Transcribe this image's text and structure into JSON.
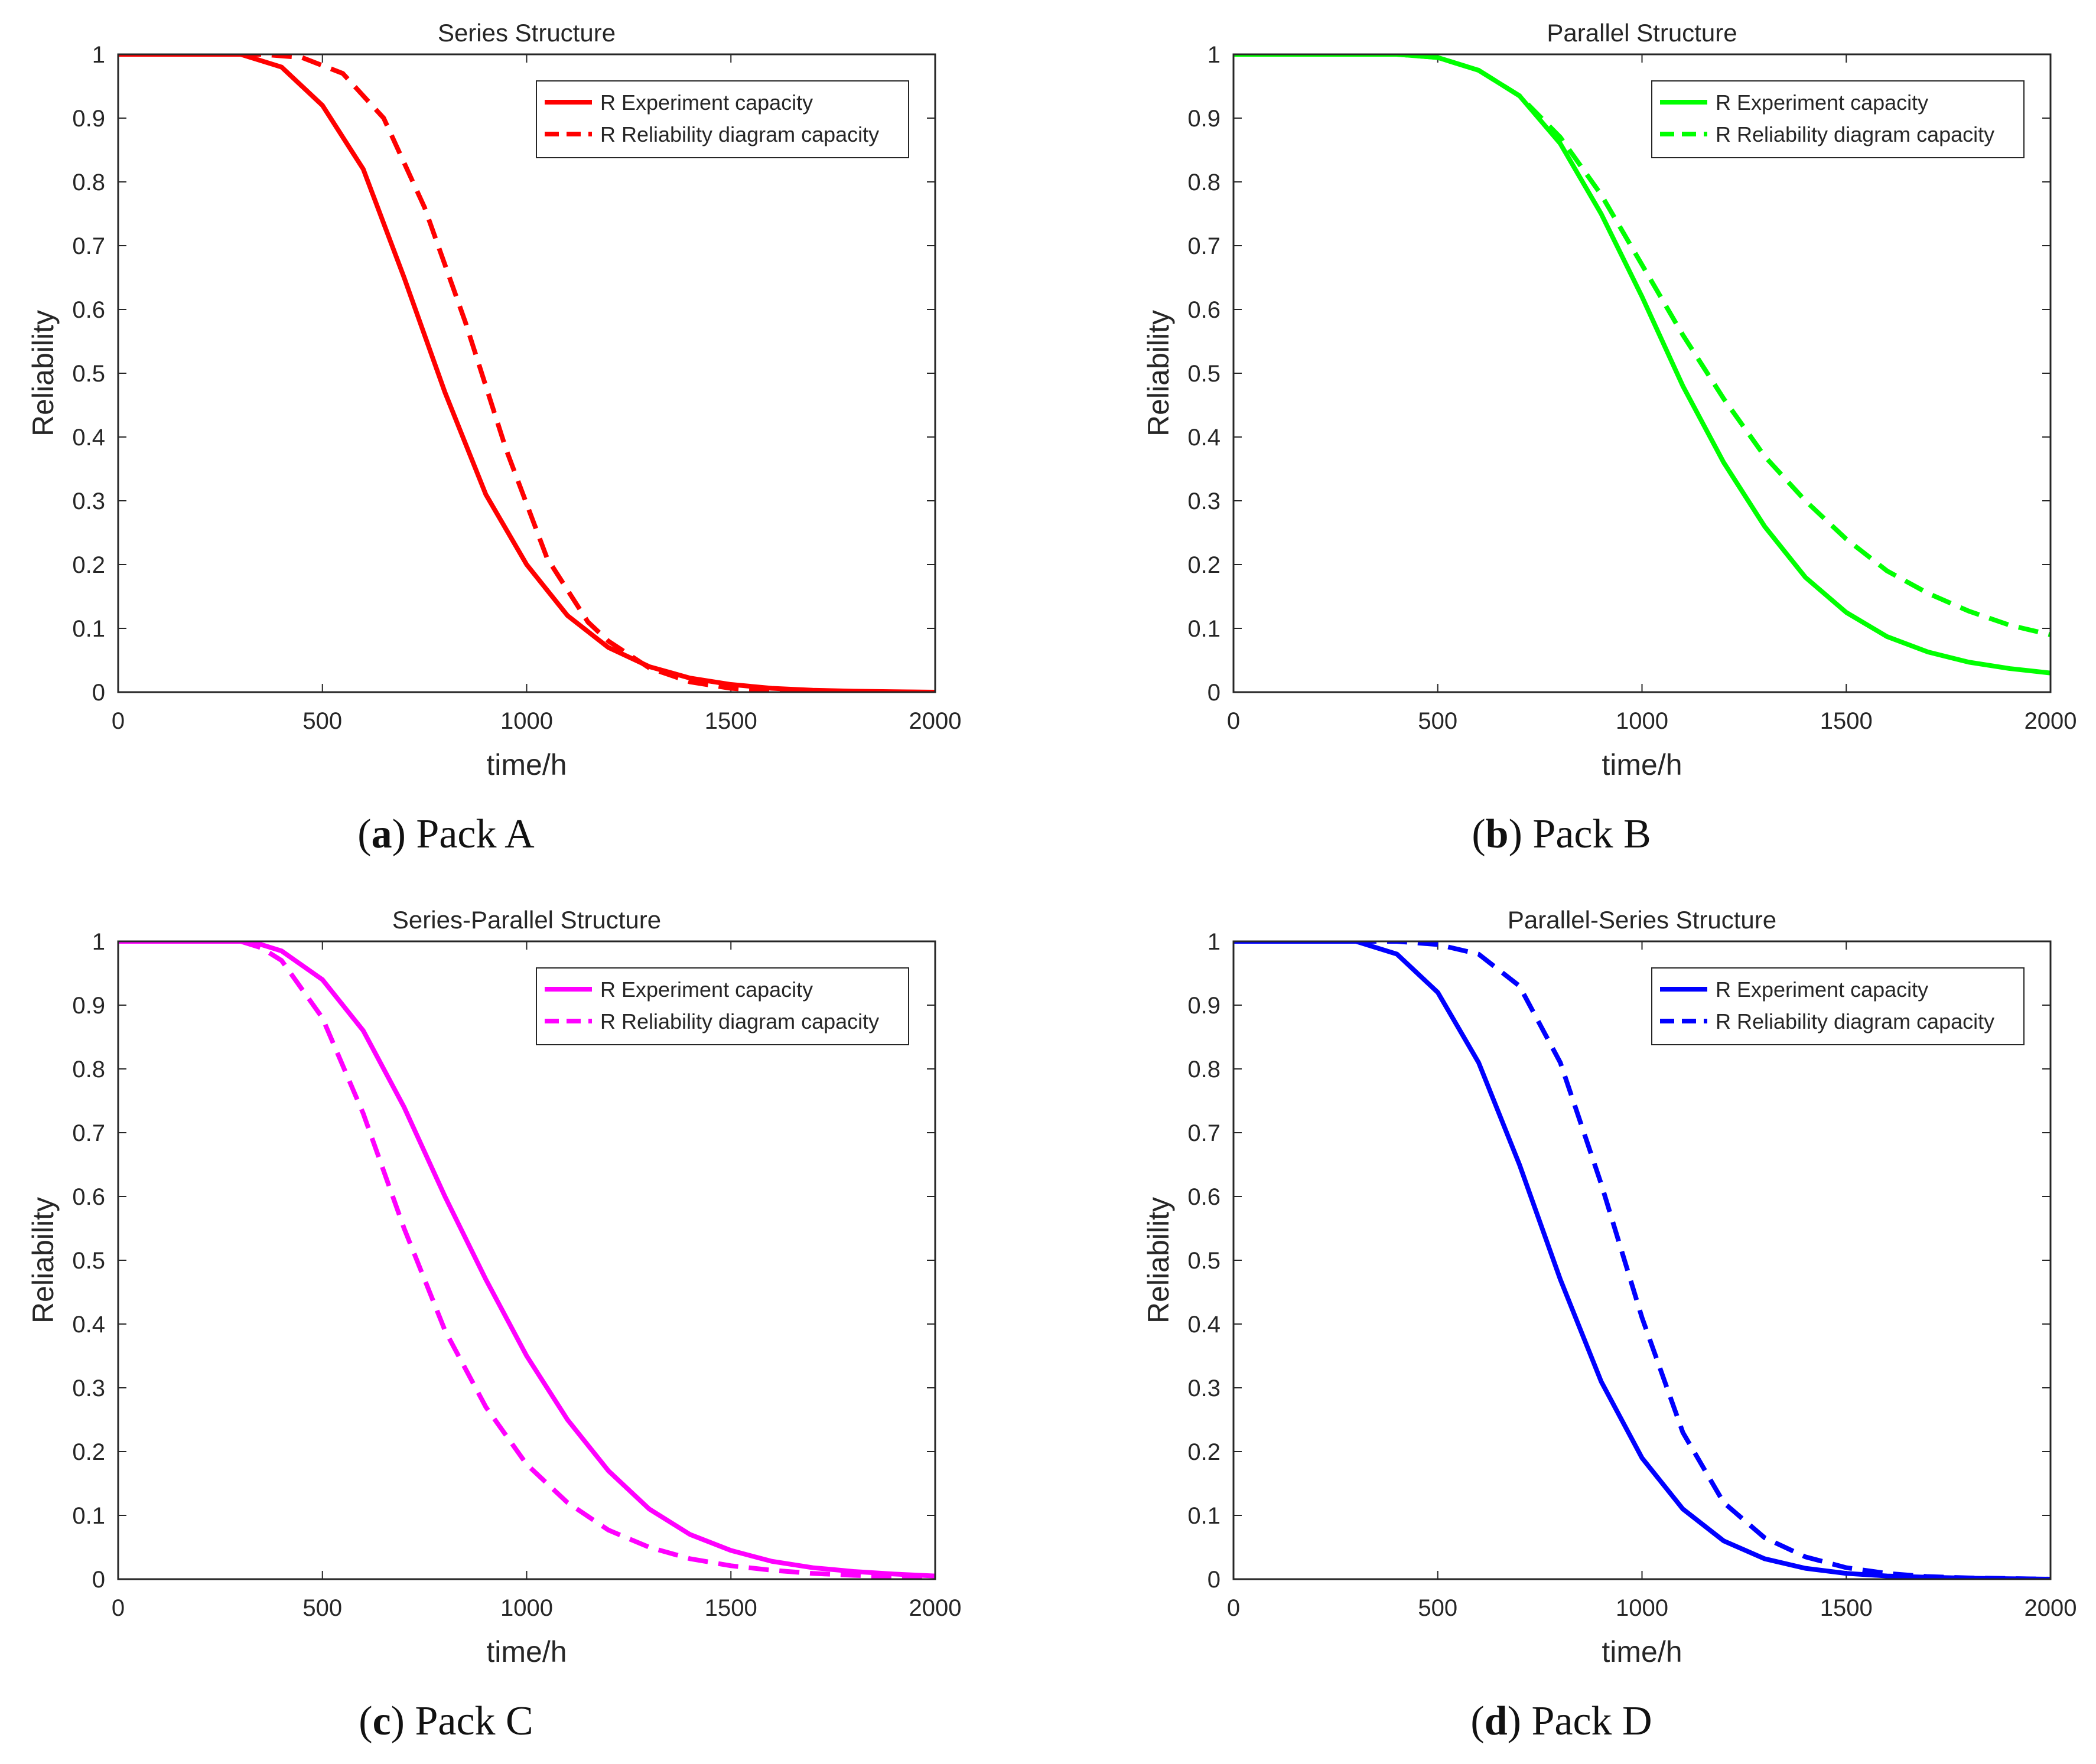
{
  "figure": {
    "panels": [
      {
        "letter": "a",
        "caption": "Pack A"
      },
      {
        "letter": "b",
        "caption": "Pack B"
      },
      {
        "letter": "c",
        "caption": "Pack C"
      },
      {
        "letter": "d",
        "caption": "Pack D"
      }
    ]
  },
  "chart_data": [
    {
      "type": "line",
      "title": "Series Structure",
      "xlabel": "time/h",
      "ylabel": "Reliability",
      "xlim": [
        0,
        2000
      ],
      "ylim": [
        0,
        1
      ],
      "xticks": [
        0,
        500,
        1000,
        1500,
        2000
      ],
      "yticks": [
        0,
        0.1,
        0.2,
        0.3,
        0.4,
        0.5,
        0.6,
        0.7,
        0.8,
        0.9,
        1
      ],
      "legend_position": "top-right",
      "color": "#ff0000",
      "series": [
        {
          "name": "R Experiment capacity",
          "style": "solid",
          "x": [
            0,
            300,
            400,
            500,
            600,
            700,
            800,
            900,
            1000,
            1100,
            1200,
            1300,
            1400,
            1500,
            1600,
            1700,
            1800,
            1900,
            2000
          ],
          "y": [
            1.0,
            1.0,
            0.98,
            0.92,
            0.82,
            0.65,
            0.47,
            0.31,
            0.2,
            0.12,
            0.07,
            0.04,
            0.022,
            0.012,
            0.006,
            0.003,
            0.0015,
            0.0007,
            0.0
          ]
        },
        {
          "name": "R Reliability diagram capacity",
          "style": "dashed",
          "x": [
            0,
            350,
            450,
            550,
            650,
            750,
            850,
            950,
            1050,
            1150,
            1200,
            1300,
            1400,
            1500,
            1600,
            1700,
            1800,
            2000
          ],
          "y": [
            1.0,
            1.0,
            0.995,
            0.97,
            0.9,
            0.76,
            0.58,
            0.38,
            0.21,
            0.11,
            0.08,
            0.038,
            0.016,
            0.006,
            0.002,
            0.0008,
            0.0003,
            0.0
          ]
        }
      ]
    },
    {
      "type": "line",
      "title": "Parallel Structure",
      "xlabel": "time/h",
      "ylabel": "Reliability",
      "xlim": [
        0,
        2000
      ],
      "ylim": [
        0,
        1
      ],
      "xticks": [
        0,
        500,
        1000,
        1500,
        2000
      ],
      "yticks": [
        0,
        0.1,
        0.2,
        0.3,
        0.4,
        0.5,
        0.6,
        0.7,
        0.8,
        0.9,
        1
      ],
      "legend_position": "top-right",
      "color": "#00ff00",
      "series": [
        {
          "name": "R Experiment capacity",
          "style": "solid",
          "x": [
            0,
            400,
            500,
            600,
            700,
            800,
            900,
            1000,
            1100,
            1200,
            1300,
            1400,
            1500,
            1600,
            1700,
            1800,
            1900,
            2000
          ],
          "y": [
            1.0,
            1.0,
            0.995,
            0.975,
            0.935,
            0.86,
            0.75,
            0.62,
            0.48,
            0.36,
            0.26,
            0.18,
            0.125,
            0.087,
            0.063,
            0.047,
            0.037,
            0.03
          ]
        },
        {
          "name": "R Reliability diagram capacity",
          "style": "dashed",
          "x": [
            0,
            400,
            500,
            600,
            700,
            800,
            900,
            1000,
            1100,
            1200,
            1300,
            1400,
            1500,
            1600,
            1700,
            1800,
            1900,
            2000
          ],
          "y": [
            1.0,
            1.0,
            0.995,
            0.975,
            0.935,
            0.87,
            0.78,
            0.67,
            0.56,
            0.46,
            0.37,
            0.3,
            0.24,
            0.19,
            0.155,
            0.127,
            0.105,
            0.09
          ]
        }
      ]
    },
    {
      "type": "line",
      "title": "Series-Parallel Structure",
      "xlabel": "time/h",
      "ylabel": "Reliability",
      "xlim": [
        0,
        2000
      ],
      "ylim": [
        0,
        1
      ],
      "xticks": [
        0,
        500,
        1000,
        1500,
        2000
      ],
      "yticks": [
        0,
        0.1,
        0.2,
        0.3,
        0.4,
        0.5,
        0.6,
        0.7,
        0.8,
        0.9,
        1
      ],
      "legend_position": "top-right",
      "color": "#ff00ff",
      "series": [
        {
          "name": "R Experiment capacity",
          "style": "solid",
          "x": [
            0,
            300,
            350,
            400,
            500,
            600,
            700,
            800,
            900,
            1000,
            1100,
            1200,
            1300,
            1400,
            1500,
            1600,
            1700,
            1800,
            1900,
            2000
          ],
          "y": [
            1.0,
            1.0,
            0.995,
            0.985,
            0.94,
            0.86,
            0.74,
            0.6,
            0.47,
            0.35,
            0.25,
            0.17,
            0.11,
            0.07,
            0.045,
            0.028,
            0.018,
            0.012,
            0.008,
            0.005
          ]
        },
        {
          "name": "R Reliability diagram capacity",
          "style": "dashed",
          "x": [
            0,
            300,
            350,
            400,
            500,
            600,
            700,
            800,
            900,
            1000,
            1100,
            1200,
            1300,
            1400,
            1500,
            1600,
            1700,
            1800,
            1900,
            2000
          ],
          "y": [
            1.0,
            1.0,
            0.99,
            0.97,
            0.88,
            0.73,
            0.55,
            0.39,
            0.27,
            0.18,
            0.12,
            0.077,
            0.05,
            0.032,
            0.021,
            0.014,
            0.009,
            0.006,
            0.004,
            0.003
          ]
        }
      ]
    },
    {
      "type": "line",
      "title": "Parallel-Series Structure",
      "xlabel": "time/h",
      "ylabel": "Reliability",
      "xlim": [
        0,
        2000
      ],
      "ylim": [
        0,
        1
      ],
      "xticks": [
        0,
        500,
        1000,
        1500,
        2000
      ],
      "yticks": [
        0,
        0.1,
        0.2,
        0.3,
        0.4,
        0.5,
        0.6,
        0.7,
        0.8,
        0.9,
        1
      ],
      "legend_position": "top-right",
      "color": "#0000ff",
      "series": [
        {
          "name": "R Experiment capacity",
          "style": "solid",
          "x": [
            0,
            300,
            400,
            500,
            600,
            700,
            800,
            900,
            1000,
            1100,
            1200,
            1300,
            1400,
            1500,
            1600,
            1700,
            1800,
            1900,
            2000
          ],
          "y": [
            1.0,
            1.0,
            0.98,
            0.92,
            0.81,
            0.65,
            0.47,
            0.31,
            0.19,
            0.11,
            0.06,
            0.032,
            0.017,
            0.009,
            0.005,
            0.003,
            0.0015,
            0.0007,
            0.0
          ]
        },
        {
          "name": "R Reliability diagram capacity",
          "style": "dashed",
          "x": [
            0,
            400,
            500,
            600,
            700,
            800,
            900,
            1000,
            1100,
            1200,
            1300,
            1400,
            1500,
            1600,
            1700,
            1800,
            1900,
            2000
          ],
          "y": [
            1.0,
            1.0,
            0.995,
            0.98,
            0.93,
            0.81,
            0.62,
            0.41,
            0.23,
            0.12,
            0.065,
            0.035,
            0.018,
            0.009,
            0.004,
            0.002,
            0.001,
            0.0
          ]
        }
      ]
    }
  ]
}
